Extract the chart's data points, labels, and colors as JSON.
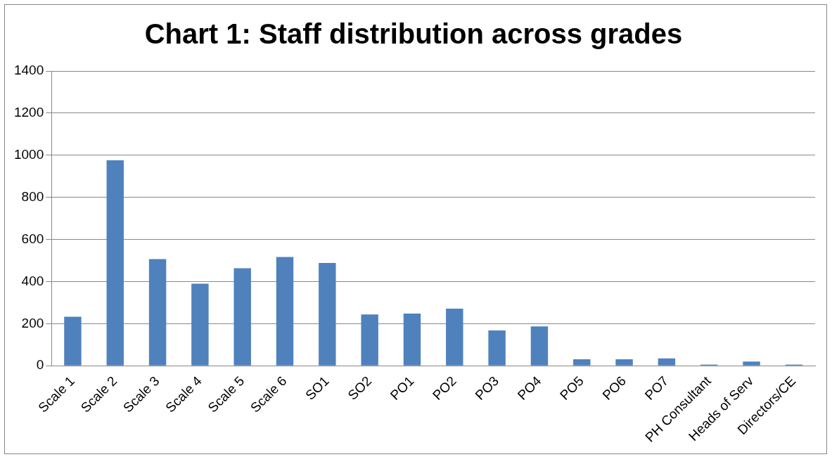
{
  "chart_data": {
    "type": "bar",
    "title": "Chart 1: Staff distribution across grades",
    "categories": [
      "Scale 1",
      "Scale 2",
      "Scale 3",
      "Scale 4",
      "Scale 5",
      "Scale 6",
      "SO1",
      "SO2",
      "PO1",
      "PO2",
      "PO3",
      "PO4",
      "PO5",
      "PO6",
      "PO7",
      "PH Consultant",
      "Heads of Serv",
      "Directors/CE"
    ],
    "values": [
      233,
      976,
      507,
      390,
      463,
      517,
      488,
      244,
      248,
      271,
      168,
      187,
      31,
      31,
      35,
      6,
      20,
      6
    ],
    "color": "#4f81bd",
    "ylim": [
      0,
      1400
    ],
    "yticks": [
      0,
      200,
      400,
      600,
      800,
      1000,
      1200,
      1400
    ],
    "grid": "y",
    "legend": false
  }
}
